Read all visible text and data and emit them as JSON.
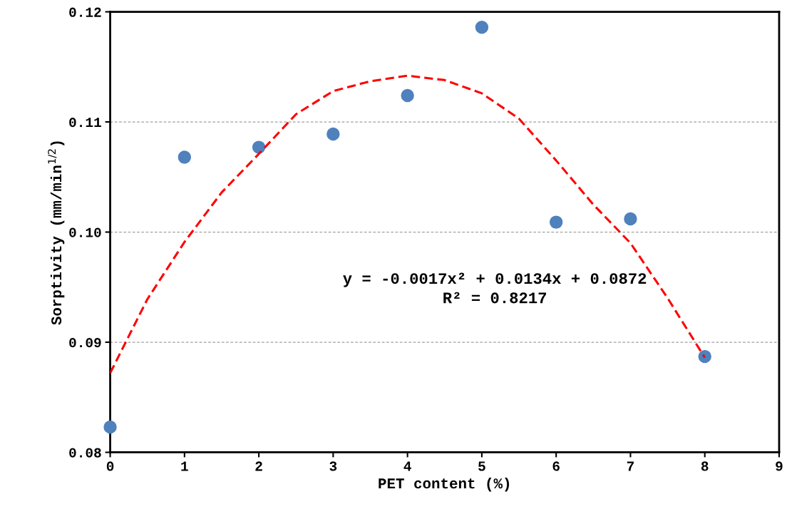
{
  "chart_data": {
    "type": "scatter",
    "xlabel": "PET content (%)",
    "ylabel": "Sorptivity (mm/min$^{1/2}$)",
    "xlim": [
      0,
      9
    ],
    "xticks": [
      0,
      1,
      2,
      3,
      4,
      5,
      6,
      7,
      8,
      9
    ],
    "ylim": [
      0.08,
      0.12
    ],
    "yticks": [
      {
        "value": 0.08,
        "label": "0.08"
      },
      {
        "value": 0.09,
        "label": "0.09"
      },
      {
        "value": 0.1,
        "label": "0.10"
      },
      {
        "value": 0.11,
        "label": "0.11"
      },
      {
        "value": 0.12,
        "label": "0.12"
      }
    ],
    "grid": "y",
    "marker": "circle",
    "series": [
      {
        "color": "#4f81bd",
        "x": [
          0,
          1,
          2,
          3,
          4,
          5,
          6,
          7,
          8
        ],
        "values": [
          0.0823,
          0.1068,
          0.1077,
          0.1089,
          0.1124,
          0.1186,
          0.1009,
          0.1012,
          0.0887
        ]
      },
      {
        "type": "line",
        "color": "#ff0000",
        "line_style": "dashed",
        "marker": "none",
        "x": [
          0,
          0.5,
          1,
          1.5,
          2,
          2.5,
          3,
          3.5,
          4,
          4.5,
          5,
          5.5,
          6,
          6.5,
          7,
          7.5,
          8
        ],
        "values": [
          0.0872,
          0.0939,
          0.0991,
          0.1036,
          0.1071,
          0.1107,
          0.1128,
          0.1137,
          0.1142,
          0.1138,
          0.1126,
          0.1103,
          0.1065,
          0.1025,
          0.099,
          0.094,
          0.0886
        ]
      }
    ],
    "annotations": [
      "y = -0.0017x² + 0.0134x + 0.0872\nR² = 0.8217"
    ]
  }
}
